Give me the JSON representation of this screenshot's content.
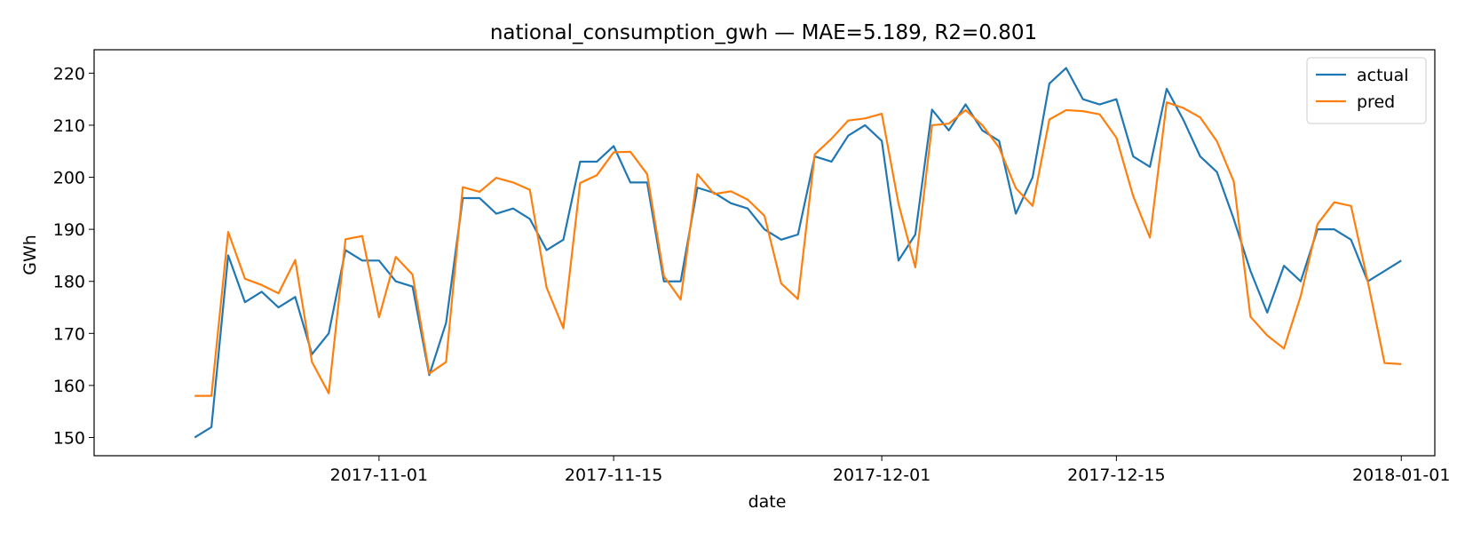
{
  "chart_data": {
    "type": "line",
    "title": "national_consumption_gwh — MAE=5.189, R2=0.801",
    "xlabel": "date",
    "ylabel": "GWh",
    "ylim": [
      146.5,
      224.5
    ],
    "xlim": [
      "2017-10-15",
      "2018-01-03"
    ],
    "x_ticks": [
      "2017-11-01",
      "2017-11-15",
      "2017-12-01",
      "2017-12-15",
      "2018-01-01"
    ],
    "y_ticks": [
      150,
      160,
      170,
      180,
      190,
      200,
      210,
      220
    ],
    "grid": false,
    "legend_position": "top-right",
    "dates": [
      "2017-10-21",
      "2017-10-22",
      "2017-10-23",
      "2017-10-24",
      "2017-10-25",
      "2017-10-26",
      "2017-10-27",
      "2017-10-28",
      "2017-10-29",
      "2017-10-30",
      "2017-10-31",
      "2017-11-01",
      "2017-11-02",
      "2017-11-03",
      "2017-11-04",
      "2017-11-05",
      "2017-11-06",
      "2017-11-07",
      "2017-11-08",
      "2017-11-09",
      "2017-11-10",
      "2017-11-11",
      "2017-11-12",
      "2017-11-13",
      "2017-11-14",
      "2017-11-15",
      "2017-11-16",
      "2017-11-17",
      "2017-11-18",
      "2017-11-19",
      "2017-11-20",
      "2017-11-21",
      "2017-11-22",
      "2017-11-23",
      "2017-11-24",
      "2017-11-25",
      "2017-11-26",
      "2017-11-27",
      "2017-11-28",
      "2017-11-29",
      "2017-11-30",
      "2017-12-01",
      "2017-12-02",
      "2017-12-03",
      "2017-12-04",
      "2017-12-05",
      "2017-12-06",
      "2017-12-07",
      "2017-12-08",
      "2017-12-09",
      "2017-12-10",
      "2017-12-11",
      "2017-12-12",
      "2017-12-13",
      "2017-12-14",
      "2017-12-15",
      "2017-12-16",
      "2017-12-17",
      "2017-12-18",
      "2017-12-19",
      "2017-12-20",
      "2017-12-21",
      "2017-12-22",
      "2017-12-23",
      "2017-12-24",
      "2017-12-25",
      "2017-12-26",
      "2017-12-27",
      "2017-12-28",
      "2017-12-29",
      "2017-12-30",
      "2017-12-31",
      "2018-01-01"
    ],
    "series": [
      {
        "name": "actual",
        "color": "#1f77b4",
        "values": [
          150,
          152,
          185,
          176,
          178,
          175,
          177,
          166,
          170,
          186,
          184,
          184,
          180,
          179,
          162,
          172,
          196,
          196,
          193,
          194,
          192,
          186,
          188,
          203,
          203,
          206,
          199,
          199,
          180,
          180,
          198,
          197,
          195,
          194,
          190,
          188,
          189,
          204,
          203,
          208,
          210,
          207,
          184,
          189,
          213,
          209,
          214,
          209,
          207,
          193,
          200,
          218,
          221,
          215,
          214,
          215,
          204,
          202,
          217,
          211,
          204,
          201,
          192,
          182,
          174,
          183,
          180,
          190,
          190,
          188,
          180,
          182,
          184
        ]
      },
      {
        "name": "pred",
        "color": "#ff7f0e",
        "values": [
          158,
          158,
          189.5,
          180.5,
          179.3,
          177.7,
          184.1,
          164.5,
          158.5,
          188.1,
          188.7,
          173.1,
          184.7,
          181.3,
          162.3,
          164.5,
          198.1,
          197.2,
          199.9,
          199,
          197.6,
          178.8,
          171,
          198.9,
          200.4,
          204.8,
          204.9,
          200.6,
          181,
          176.5,
          200.6,
          196.8,
          197.3,
          195.7,
          192.6,
          179.6,
          176.6,
          204.4,
          207.4,
          210.9,
          211.3,
          212.2,
          194.9,
          182.7,
          210,
          210.3,
          212.9,
          210,
          205.7,
          197.9,
          194.5,
          211.1,
          212.9,
          212.7,
          212.1,
          207.6,
          196.4,
          188.4,
          214.4,
          213.3,
          211.5,
          206.9,
          199.2,
          173.2,
          169.6,
          167.1,
          177.2,
          191,
          195.2,
          194.5,
          180,
          164.3,
          164.1
        ]
      }
    ]
  }
}
